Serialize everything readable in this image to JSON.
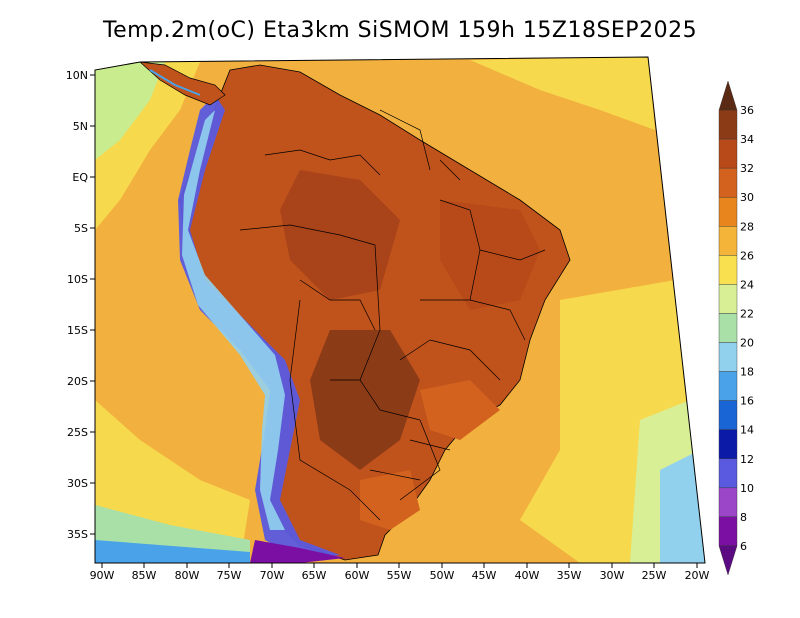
{
  "title": "Temp.2m(oC) Eta3km SiSMOM 159h 15Z18SEP2025",
  "lat_labels": [
    "10N",
    "5N",
    "EQ",
    "5S",
    "10S",
    "15S",
    "20S",
    "25S",
    "30S",
    "35S"
  ],
  "lon_labels": [
    "90W",
    "85W",
    "80W",
    "75W",
    "70W",
    "65W",
    "60W",
    "55W",
    "50W",
    "45W",
    "40W",
    "35W",
    "30W",
    "25W",
    "20W"
  ],
  "colorbar": {
    "labels": [
      "36",
      "34",
      "32",
      "30",
      "28",
      "26",
      "24",
      "22",
      "20",
      "18",
      "16",
      "14",
      "12",
      "10",
      "8",
      "6"
    ],
    "colors": [
      "#5a2a14",
      "#8c3b17",
      "#b84a1a",
      "#d2621e",
      "#e8861d",
      "#f4b43a",
      "#f9e04e",
      "#d8ef96",
      "#a9e0a8",
      "#92d1ee",
      "#4aa3e8",
      "#1965d6",
      "#0c1aa8",
      "#5a5ae0",
      "#9b45c9",
      "#7c0fa3",
      "#5b0a82"
    ]
  }
}
